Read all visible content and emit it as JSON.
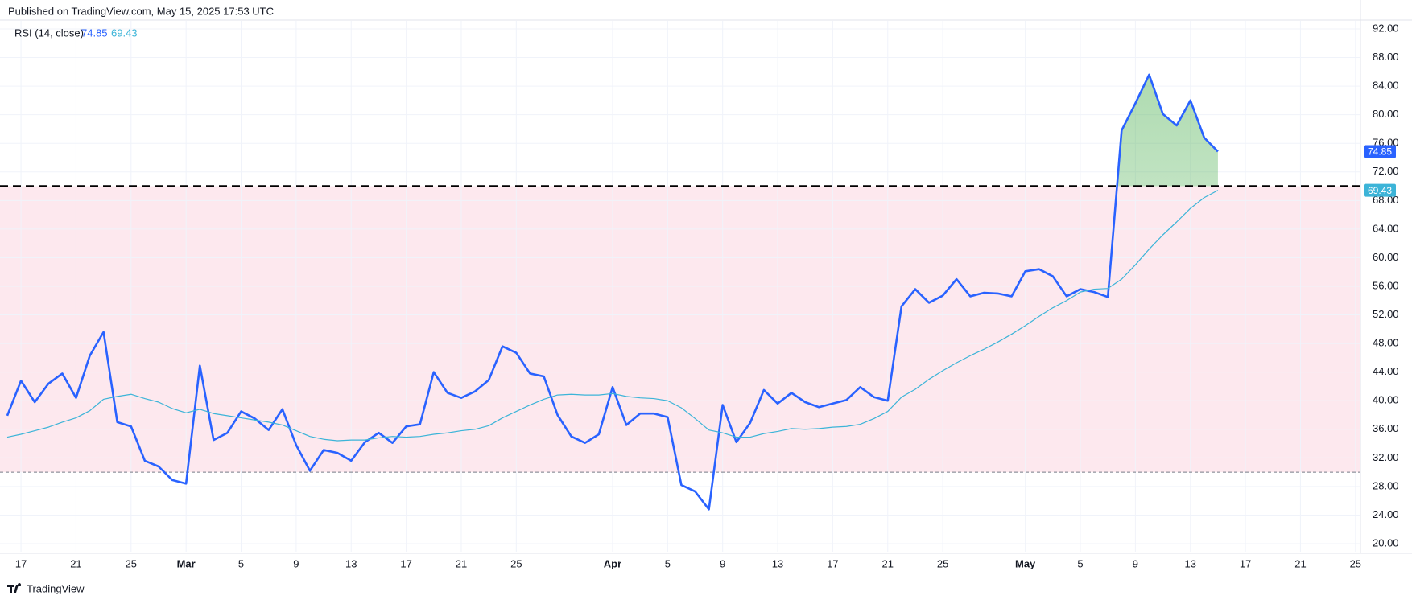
{
  "header": "Published on TradingView.com, May 15, 2025 17:53 UTC",
  "footer": "TradingView",
  "chart_data": {
    "type": "line",
    "indicator": "RSI (14, close)",
    "categories": [
      null,
      "17",
      null,
      null,
      null,
      "21",
      null,
      null,
      null,
      "25",
      null,
      null,
      null,
      "Mar",
      null,
      null,
      null,
      "5",
      null,
      null,
      null,
      "9",
      null,
      null,
      null,
      "13",
      null,
      null,
      null,
      "17",
      null,
      null,
      null,
      "21",
      null,
      null,
      null,
      "25",
      null,
      null,
      null,
      null,
      null,
      null,
      "Apr",
      null,
      null,
      null,
      "5",
      null,
      null,
      null,
      "9",
      null,
      null,
      null,
      "13",
      null,
      null,
      null,
      "17",
      null,
      null,
      null,
      "21",
      null,
      null,
      null,
      "25",
      null,
      null,
      null,
      null,
      null,
      "May",
      null,
      null,
      null,
      "5",
      null,
      null,
      null,
      "9",
      null,
      null,
      null,
      "13",
      null,
      null,
      null,
      "17",
      null,
      null,
      null,
      "21",
      null,
      null,
      null,
      "25"
    ],
    "series": [
      {
        "name": "RSI (14, close)",
        "color": "#2962ff",
        "values": [
          37.9,
          42.8,
          39.8,
          42.4,
          43.8,
          40.4,
          46.3,
          49.6,
          37.0,
          36.4,
          31.6,
          30.8,
          28.9,
          28.4,
          44.9,
          34.5,
          35.5,
          38.5,
          37.5,
          35.9,
          38.8,
          33.8,
          30.2,
          33.1,
          32.7,
          31.6,
          34.2,
          35.5,
          34.1,
          36.4,
          36.7,
          44.0,
          41.1,
          40.4,
          41.3,
          42.9,
          47.6,
          46.7,
          43.8,
          43.4,
          38.0,
          35.0,
          34.1,
          35.3,
          41.9,
          36.6,
          38.2,
          38.2,
          37.7,
          28.2,
          27.3,
          24.8,
          39.4,
          34.2,
          36.9,
          41.5,
          39.6,
          41.1,
          39.8,
          39.1,
          39.6,
          40.1,
          41.9,
          40.5,
          40.0,
          53.2,
          55.6,
          53.7,
          54.7,
          57.0,
          54.6,
          55.1,
          55.0,
          54.6,
          58.1,
          58.4,
          57.4,
          54.6,
          55.6,
          55.2,
          54.5,
          77.8,
          81.6,
          85.6,
          80.1,
          78.5,
          82.0,
          76.8,
          74.85,
          null,
          null,
          null,
          null,
          null,
          null,
          null,
          null,
          null,
          null
        ]
      },
      {
        "color": "#3cb4d8",
        "values": [
          34.9,
          35.3,
          35.8,
          36.3,
          37.0,
          37.6,
          38.6,
          40.2,
          40.6,
          40.9,
          40.3,
          39.8,
          38.9,
          38.3,
          38.8,
          38.2,
          37.9,
          37.6,
          37.3,
          37.0,
          36.6,
          35.8,
          35.0,
          34.6,
          34.4,
          34.5,
          34.5,
          34.8,
          35.0,
          34.9,
          35.0,
          35.3,
          35.5,
          35.8,
          36.0,
          36.5,
          37.6,
          38.5,
          39.4,
          40.2,
          40.8,
          40.9,
          40.8,
          40.8,
          41.0,
          40.6,
          40.4,
          40.3,
          40.0,
          39.0,
          37.5,
          35.9,
          35.5,
          34.9,
          34.9,
          35.4,
          35.7,
          36.1,
          36.0,
          36.1,
          36.3,
          36.4,
          36.7,
          37.5,
          38.5,
          40.5,
          41.6,
          43.0,
          44.2,
          45.3,
          46.3,
          47.2,
          48.2,
          49.3,
          50.5,
          51.8,
          53.0,
          54.0,
          55.2,
          55.6,
          55.7,
          57.0,
          59.0,
          61.2,
          63.2,
          65.0,
          66.9,
          68.4,
          69.43,
          null,
          null,
          null,
          null,
          null,
          null,
          null,
          null,
          null,
          null
        ]
      }
    ],
    "upper_band": 70,
    "lower_band": 30,
    "band_color": "#fde8ee",
    "overbought_fill": "#4caf50",
    "ylim": [
      20,
      92
    ],
    "yticks": [
      {
        "value": 20,
        "label": "20.00"
      },
      {
        "value": 24,
        "label": "24.00"
      },
      {
        "value": 28,
        "label": "28.00"
      },
      {
        "value": 32,
        "label": "32.00"
      },
      {
        "value": 36,
        "label": "36.00"
      },
      {
        "value": 40,
        "label": "40.00"
      },
      {
        "value": 44,
        "label": "44.00"
      },
      {
        "value": 48,
        "label": "48.00"
      },
      {
        "value": 52,
        "label": "52.00"
      },
      {
        "value": 56,
        "label": "56.00"
      },
      {
        "value": 60,
        "label": "60.00"
      },
      {
        "value": 64,
        "label": "64.00"
      },
      {
        "value": 68,
        "label": "68.00"
      },
      {
        "value": 72,
        "label": "72.00"
      },
      {
        "value": 76,
        "label": "76.00"
      },
      {
        "value": 80,
        "label": "80.00"
      },
      {
        "value": 84,
        "label": "84.00"
      },
      {
        "value": 88,
        "label": "88.00"
      },
      {
        "value": 92,
        "label": "92.00"
      }
    ],
    "grid": true
  }
}
